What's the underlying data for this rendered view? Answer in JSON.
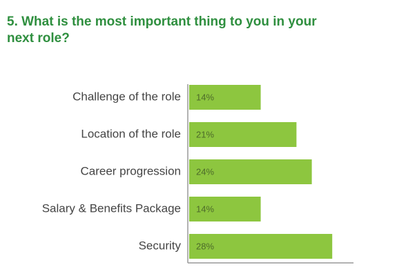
{
  "chart_data": {
    "type": "bar",
    "orientation": "horizontal",
    "title": "5. What is the most important thing to you in your next role?",
    "categories": [
      "Challenge of the role",
      "Location of the role",
      "Career progression",
      "Salary & Benefits Package",
      "Security"
    ],
    "values": [
      14,
      21,
      24,
      14,
      28
    ],
    "value_labels": [
      "14%",
      "21%",
      "24%",
      "14%",
      "28%"
    ],
    "color": "#8dc63f"
  }
}
